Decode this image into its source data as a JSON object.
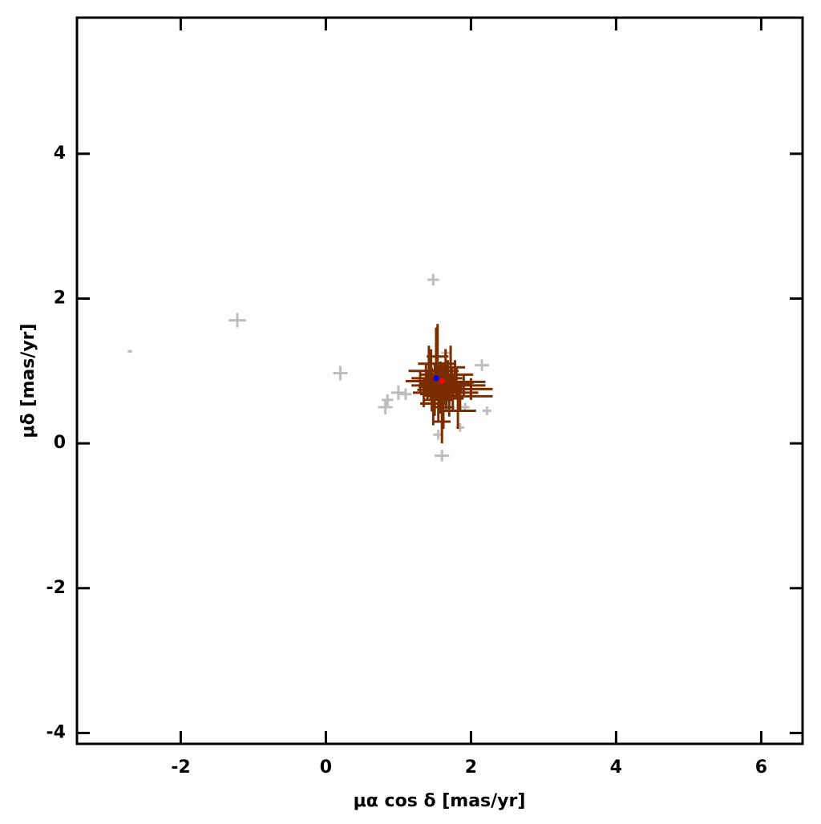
{
  "chart_data": {
    "type": "scatter",
    "x_label": "μα cos δ [mas/yr]",
    "y_label": "μδ [mas/yr]",
    "xlim": [
      -3.43,
      6.57
    ],
    "ylim": [
      -4.15,
      5.88
    ],
    "xticks": [
      -2,
      0,
      2,
      4,
      6
    ],
    "yticks": [
      -4,
      -2,
      0,
      2,
      4
    ],
    "series": [
      {
        "color": "#bdbdbd",
        "x": [
          -2.7,
          -1.22,
          0.2,
          0.82,
          0.85,
          1.0,
          1.1,
          1.48,
          2.15,
          2.22,
          1.6,
          1.55,
          1.85,
          1.65,
          1.92
        ],
        "y": [
          1.27,
          1.7,
          0.97,
          0.5,
          0.6,
          0.7,
          0.68,
          2.26,
          1.08,
          0.45,
          -0.17,
          0.12,
          0.22,
          1.25,
          0.5
        ],
        "xerr": [
          0.03,
          0.12,
          0.1,
          0.1,
          0.08,
          0.1,
          0.08,
          0.08,
          0.1,
          0.06,
          0.1,
          0.07,
          0.06,
          0.06,
          0.06
        ],
        "yerr": [
          0.02,
          0.1,
          0.1,
          0.1,
          0.08,
          0.1,
          0.08,
          0.08,
          0.08,
          0.06,
          0.08,
          0.07,
          0.06,
          0.06,
          0.06
        ]
      },
      {
        "color": "#7a2e00",
        "x": [
          1.6,
          1.5,
          1.7,
          1.45,
          1.75,
          1.55,
          1.65,
          1.4,
          1.8,
          1.62,
          1.52,
          1.68,
          1.35,
          1.85,
          1.58,
          1.72,
          1.48,
          1.9,
          1.42,
          1.66,
          1.56,
          1.78,
          1.5,
          1.64,
          1.38,
          2.0,
          1.6,
          1.7,
          1.54,
          1.82,
          1.46,
          1.63,
          1.57,
          1.74,
          1.3
        ],
        "y": [
          0.8,
          0.85,
          0.75,
          0.95,
          0.7,
          0.6,
          1.0,
          0.8,
          0.85,
          0.5,
          1.1,
          0.9,
          0.7,
          0.65,
          0.78,
          1.05,
          0.55,
          0.8,
          1.0,
          0.72,
          0.88,
          0.95,
          0.68,
          0.82,
          0.9,
          0.75,
          0.3,
          0.62,
          1.2,
          0.45,
          0.74,
          0.92,
          0.66,
          0.84,
          0.86
        ],
        "xerr": [
          0.3,
          0.2,
          0.25,
          0.15,
          0.35,
          0.2,
          0.18,
          0.22,
          0.4,
          0.15,
          0.25,
          0.2,
          0.15,
          0.45,
          0.3,
          0.2,
          0.18,
          0.3,
          0.28,
          0.22,
          0.15,
          0.25,
          0.2,
          0.35,
          0.2,
          0.3,
          0.12,
          0.2,
          0.15,
          0.25,
          0.2,
          0.18,
          0.22,
          0.3,
          0.2
        ],
        "yerr": [
          0.3,
          0.25,
          0.2,
          0.35,
          0.25,
          0.3,
          0.3,
          0.2,
          0.2,
          0.3,
          0.5,
          0.25,
          0.2,
          0.2,
          0.35,
          0.3,
          0.3,
          0.15,
          0.35,
          0.25,
          0.2,
          0.2,
          0.3,
          0.25,
          0.2,
          0.15,
          0.3,
          0.25,
          0.45,
          0.25,
          0.3,
          0.2,
          0.25,
          0.2,
          0.15
        ]
      },
      {
        "color": "#0000ff",
        "x": [
          1.52
        ],
        "y": [
          0.9
        ]
      },
      {
        "color": "#ff0000",
        "x": [
          1.6
        ],
        "y": [
          0.86
        ]
      }
    ]
  }
}
